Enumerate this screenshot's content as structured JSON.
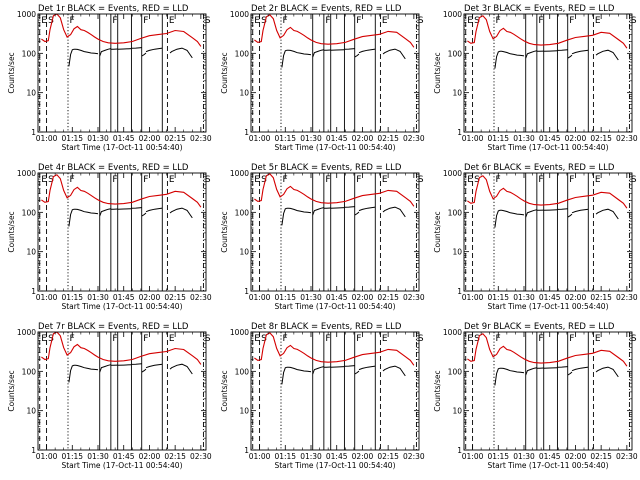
{
  "chart_data": {
    "type": "line",
    "panel_template": {
      "title_suffix": " BLACK = Events, RED = LLD",
      "xlabel": "Start Time (17-Oct-11 00:54:40)",
      "ylabel": "Counts/sec",
      "yscale": "log",
      "ylim": [
        1,
        1000
      ],
      "xlim_minutes_after_0100": [
        -5,
        93
      ],
      "x_ticks": [
        {
          "min": 0,
          "label": "01:00"
        },
        {
          "min": 15,
          "label": "01:15"
        },
        {
          "min": 30,
          "label": "01:30"
        },
        {
          "min": 45,
          "label": "01:45"
        },
        {
          "min": 60,
          "label": "02:00"
        },
        {
          "min": 75,
          "label": "02:15"
        },
        {
          "min": 90,
          "label": "02:30"
        }
      ],
      "y_ticks": [
        {
          "value": 1,
          "label": "1"
        },
        {
          "value": 10,
          "label": "10"
        },
        {
          "value": 100,
          "label": "100"
        },
        {
          "value": 1000,
          "label": "1000"
        }
      ],
      "series_names": [
        "Events",
        "LLD"
      ],
      "series_colors": {
        "Events": "#000000",
        "LLD": "#d40000"
      }
    },
    "event_markers": [
      {
        "min": -4.0,
        "style": "dashed",
        "label": "E"
      },
      {
        "min": 0.0,
        "style": "dashed",
        "label": "S"
      },
      {
        "min": 12.5,
        "style": "dotted",
        "label": "F"
      },
      {
        "min": 31.0,
        "style": "solid",
        "label": ""
      },
      {
        "min": 37.5,
        "style": "solid",
        "label": "F"
      },
      {
        "min": 41.5,
        "style": "solid",
        "label": ""
      },
      {
        "min": 49.5,
        "style": "solid",
        "label": ""
      },
      {
        "min": 55.5,
        "style": "solid",
        "label": "F"
      },
      {
        "min": 67.5,
        "style": "solid",
        "label": ""
      },
      {
        "min": 70.5,
        "style": "dashed",
        "label": "E"
      },
      {
        "min": 91.5,
        "style": "dashdot",
        "label": "S"
      }
    ],
    "lld_series": {
      "x_min": [
        -3,
        -1,
        1,
        2,
        4,
        6,
        8,
        10,
        12,
        14,
        16,
        18,
        20,
        22,
        24,
        26,
        28,
        30,
        33,
        36,
        40,
        45,
        50,
        55,
        60,
        65,
        70,
        75,
        80,
        85,
        88,
        90
      ],
      "y": [
        230,
        200,
        210,
        400,
        900,
        1000,
        800,
        400,
        260,
        300,
        420,
        480,
        400,
        380,
        340,
        300,
        260,
        230,
        200,
        185,
        180,
        185,
        200,
        240,
        280,
        300,
        320,
        380,
        360,
        250,
        200,
        150
      ]
    },
    "event_series": [
      {
        "x_min": [
          13,
          14,
          15,
          16,
          17,
          18,
          20,
          22,
          24,
          26,
          28,
          30
        ],
        "y": [
          55,
          110,
          145,
          150,
          150,
          148,
          140,
          130,
          125,
          120,
          118,
          115
        ]
      },
      {
        "x_min": [
          31,
          32,
          34,
          36,
          37.5
        ],
        "y": [
          100,
          130,
          140,
          150,
          155
        ]
      },
      {
        "x_min": [
          37.5,
          39,
          41.5
        ],
        "y": [
          150,
          150,
          152
        ]
      },
      {
        "x_min": [
          41.5,
          45,
          49.5
        ],
        "y": [
          150,
          152,
          155
        ]
      },
      {
        "x_min": [
          49.5,
          52,
          55.5
        ],
        "y": [
          158,
          160,
          165
        ]
      },
      {
        "x_min": [
          55.5,
          57,
          58
        ],
        "y": [
          100,
          110,
          120
        ]
      },
      {
        "x_min": [
          58,
          60,
          63,
          67.5
        ],
        "y": [
          130,
          140,
          150,
          160
        ]
      },
      {
        "x_min": [
          72,
          73,
          76,
          79,
          82,
          85
        ],
        "y": [
          120,
          130,
          150,
          160,
          140,
          90
        ]
      }
    ],
    "panels": [
      {
        "title": "Det 1r",
        "event_scale": 0.85,
        "lld_scale": 1.0
      },
      {
        "title": "Det 2r",
        "event_scale": 0.8,
        "lld_scale": 0.95
      },
      {
        "title": "Det 3r",
        "event_scale": 0.75,
        "lld_scale": 0.9
      },
      {
        "title": "Det 4r",
        "event_scale": 0.8,
        "lld_scale": 0.9
      },
      {
        "title": "Det 5r",
        "event_scale": 0.85,
        "lld_scale": 0.95
      },
      {
        "title": "Det 6r",
        "event_scale": 0.75,
        "lld_scale": 0.85
      },
      {
        "title": "Det 7r",
        "event_scale": 0.95,
        "lld_scale": 1.0
      },
      {
        "title": "Det 8r",
        "event_scale": 0.85,
        "lld_scale": 0.95
      },
      {
        "title": "Det 9r",
        "event_scale": 0.8,
        "lld_scale": 0.9
      }
    ]
  }
}
